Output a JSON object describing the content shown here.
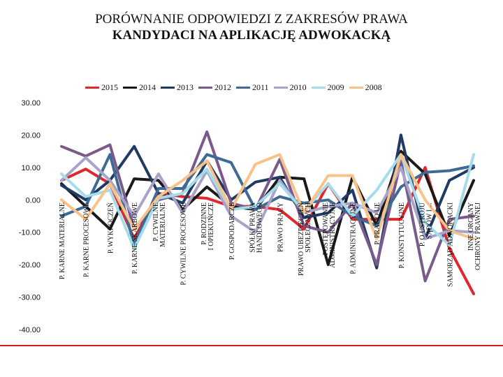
{
  "chart_data": {
    "type": "line",
    "title": "PORÓWNANIE ODPOWIEDZI Z ZAKRESÓW PRAWA",
    "subtitle": "KANDYDACI NA APLIKACJĘ ADWOKACKĄ",
    "ylim": [
      -40,
      30
    ],
    "yticks": [
      "30.00",
      "20.00",
      "10.00",
      "0.00",
      "-10.00",
      "-20.00",
      "-30.00",
      "-40.00"
    ],
    "ytick_values": [
      30,
      20,
      10,
      0,
      -10,
      -20,
      -30,
      -40
    ],
    "grid": false,
    "legend_position": "top",
    "categories": [
      "P. KARNE MATERIALNE",
      "P. KARNE PROCESOWE",
      "P. WYKROCZEŃ",
      "P. KARNE SKARBOWE",
      "P. CYWILNE MATERIALNE",
      "P. CYWILNE PROCESOWE",
      "P. RODZINNE I OPIEKUŃCZE",
      "P. GOSPODARCZE",
      "SPÓŁKI PRAWA HANDLOWEGO",
      "PRAWO PRACY",
      "PRAWO UBEZPIECZEŃ SPOŁECZNYCH",
      "POSTĘPOWANIE ADMINISTRACYJNE",
      "P. ADMINISTRACYJNE",
      "P. PRAWO UE",
      "P. KONSTYTUCYJNE",
      "P. O USTROJU SĄDÓW I ...",
      "SAMORZĄD ADWOKACKI",
      "INNE ORGANY OCHRONY PRAWNEJ"
    ],
    "series": [
      {
        "name": "2015",
        "color": "#e0282c",
        "values": [
          6,
          9.5,
          5,
          -12,
          2,
          1,
          0.5,
          -2,
          -2,
          -3,
          -9,
          5,
          -6,
          -6,
          -6,
          10,
          -15,
          -29
        ]
      },
      {
        "name": "2014",
        "color": "#1a1a1a",
        "values": [
          5,
          -2,
          -9,
          6.5,
          6,
          -3,
          4,
          -2,
          -3,
          7,
          6.5,
          -20,
          7,
          -8,
          15,
          8,
          -11,
          6
        ]
      },
      {
        "name": "2013",
        "color": "#1f3a64",
        "values": [
          4.5,
          0,
          6,
          16.5,
          2,
          -1,
          12,
          0,
          5.5,
          7,
          -5.5,
          -4,
          3,
          -21,
          20,
          -12,
          6,
          10
        ]
      },
      {
        "name": "2012",
        "color": "#7a5a8a",
        "values": [
          16.5,
          13.5,
          17,
          -9,
          0,
          2,
          21,
          -1,
          -3,
          12.5,
          -8,
          -10,
          -1,
          -20,
          12,
          -25,
          -6,
          -5
        ]
      },
      {
        "name": "2011",
        "color": "#3d6b96",
        "values": [
          -5,
          -2,
          14,
          -14,
          3.5,
          3.5,
          14,
          11.5,
          -3,
          1,
          -1,
          0,
          -5,
          -8,
          4,
          8.5,
          9,
          10.5
        ]
      },
      {
        "name": "2010",
        "color": "#a9a3c9",
        "values": [
          6,
          13,
          6,
          -5,
          8,
          -4,
          9,
          -5,
          -10,
          6,
          -4,
          -2,
          -1,
          -4,
          10,
          -12,
          -9.5,
          -10
        ]
      },
      {
        "name": "2009",
        "color": "#a5dceb",
        "values": [
          8,
          1,
          3,
          -15,
          0.5,
          2,
          9.5,
          -3,
          -2,
          5,
          -3.5,
          5,
          -5,
          3,
          14,
          -7,
          -14,
          14
        ]
      },
      {
        "name": "2008",
        "color": "#f8c38a",
        "values": [
          0,
          -6,
          5,
          -9,
          1,
          6,
          12,
          -3,
          11,
          14,
          -4,
          7.5,
          7.5,
          -12,
          14,
          0,
          -9.5,
          -12
        ]
      }
    ]
  }
}
